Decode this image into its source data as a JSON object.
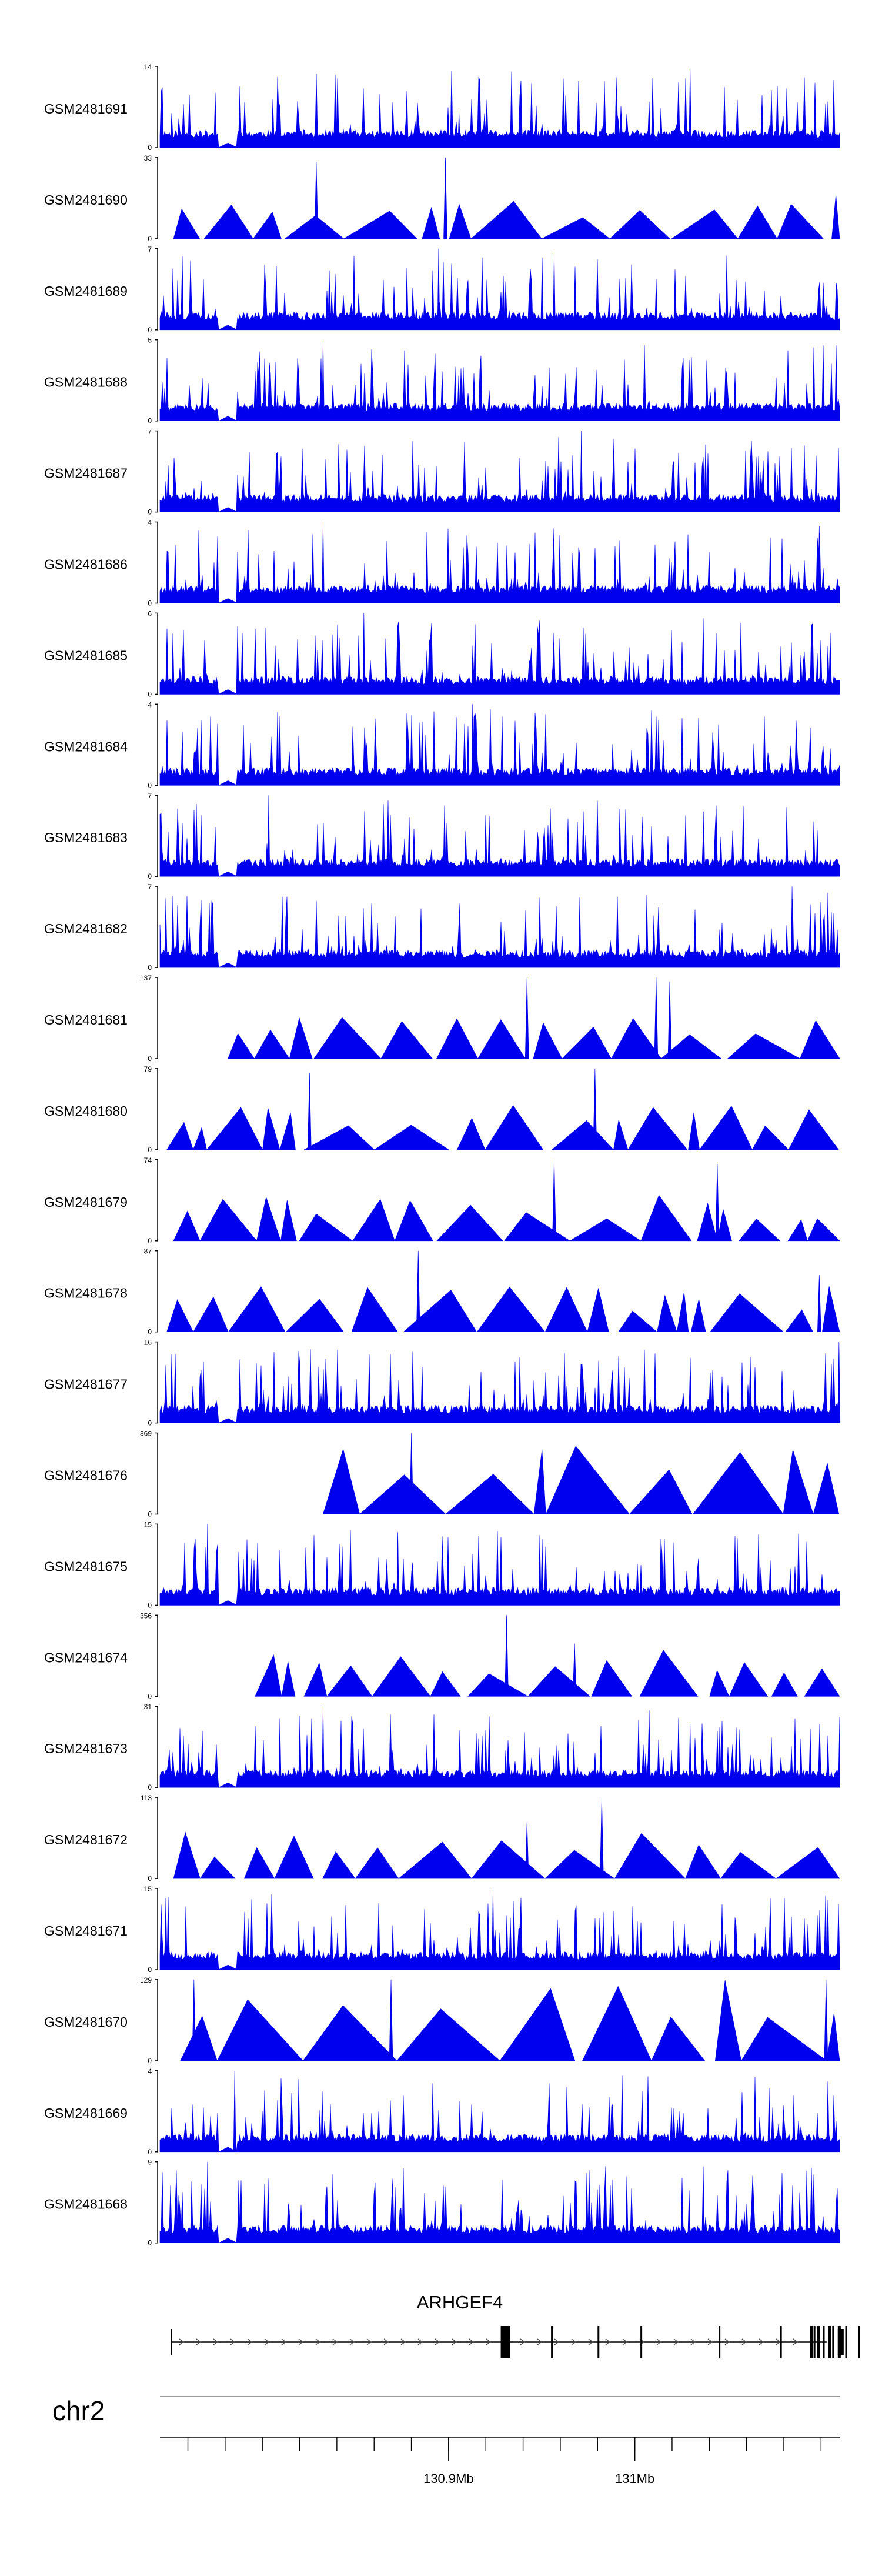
{
  "chart_data": {
    "type": "area",
    "title": "",
    "color": "#0000ee",
    "tracks": [
      {
        "name": "GSM2481691",
        "ymax": 14,
        "ymin": 0,
        "pattern": "noisy",
        "coverage": 0.97,
        "seed": 11,
        "peaks": [
          [
            0.78,
            1.0
          ],
          [
            0.44,
            0.45
          ]
        ]
      },
      {
        "name": "GSM2481690",
        "ymax": 33,
        "ymin": 0,
        "pattern": "triangle",
        "coverage": 0.98,
        "seed": 12,
        "peaks": [
          [
            0.42,
            1.0
          ],
          [
            0.23,
            0.95
          ]
        ]
      },
      {
        "name": "GSM2481689",
        "ymax": 7,
        "ymin": 0,
        "pattern": "noisy",
        "coverage": 0.98,
        "seed": 13,
        "peaks": [
          [
            0.41,
            1.0
          ],
          [
            0.58,
            0.95
          ]
        ]
      },
      {
        "name": "GSM2481688",
        "ymax": 5,
        "ymin": 0,
        "pattern": "noisy",
        "coverage": 0.98,
        "seed": 14,
        "peaks": [
          [
            0.24,
            1.0
          ]
        ]
      },
      {
        "name": "GSM2481687",
        "ymax": 7,
        "ymin": 0,
        "pattern": "noisy",
        "coverage": 0.98,
        "seed": 15,
        "peaks": [
          [
            0.62,
            1.0
          ]
        ]
      },
      {
        "name": "GSM2481686",
        "ymax": 4,
        "ymin": 0,
        "pattern": "noisy",
        "coverage": 0.98,
        "seed": 16,
        "peaks": [
          [
            0.24,
            1.0
          ],
          [
            0.97,
            0.95
          ]
        ]
      },
      {
        "name": "GSM2481685",
        "ymax": 6,
        "ymin": 0,
        "pattern": "noisy",
        "coverage": 0.98,
        "seed": 17,
        "peaks": [
          [
            0.3,
            1.0
          ]
        ]
      },
      {
        "name": "GSM2481684",
        "ymax": 4,
        "ymin": 0,
        "pattern": "noisy",
        "coverage": 0.98,
        "seed": 18,
        "peaks": [
          [
            0.46,
            1.0
          ]
        ]
      },
      {
        "name": "GSM2481683",
        "ymax": 7,
        "ymin": 0,
        "pattern": "noisy",
        "coverage": 0.98,
        "seed": 19,
        "peaks": [
          [
            0.16,
            1.0
          ],
          [
            0.8,
            0.8
          ]
        ]
      },
      {
        "name": "GSM2481682",
        "ymax": 7,
        "ymin": 0,
        "pattern": "noisy",
        "coverage": 0.98,
        "seed": 20,
        "peaks": [
          [
            0.93,
            1.0
          ]
        ]
      },
      {
        "name": "GSM2481681",
        "ymax": 137,
        "ymin": 0,
        "pattern": "triangle",
        "coverage": 0.9,
        "seed": 21,
        "peaks": [
          [
            0.54,
            1.0
          ],
          [
            0.73,
            1.0
          ],
          [
            0.75,
            0.95
          ]
        ]
      },
      {
        "name": "GSM2481680",
        "ymax": 79,
        "ymin": 0,
        "pattern": "triangle",
        "coverage": 0.99,
        "seed": 22,
        "peaks": [
          [
            0.64,
            1.0
          ],
          [
            0.22,
            0.95
          ]
        ]
      },
      {
        "name": "GSM2481679",
        "ymax": 74,
        "ymin": 0,
        "pattern": "triangle",
        "coverage": 0.98,
        "seed": 23,
        "peaks": [
          [
            0.58,
            1.0
          ],
          [
            0.82,
            0.95
          ]
        ]
      },
      {
        "name": "GSM2481678",
        "ymax": 87,
        "ymin": 0,
        "pattern": "triangle",
        "coverage": 0.99,
        "seed": 24,
        "peaks": [
          [
            0.38,
            1.0
          ],
          [
            0.97,
            0.7
          ]
        ]
      },
      {
        "name": "GSM2481677",
        "ymax": 16,
        "ymin": 0,
        "pattern": "noisy",
        "coverage": 0.99,
        "seed": 25,
        "peaks": [
          [
            0.999,
            1.0
          ],
          [
            0.81,
            0.55
          ]
        ]
      },
      {
        "name": "GSM2481676",
        "ymax": 869,
        "ymin": 0,
        "pattern": "big",
        "coverage": 0.76,
        "seed": 26,
        "peaks": [
          [
            0.37,
            1.0
          ],
          [
            0.82,
            0.35
          ]
        ]
      },
      {
        "name": "GSM2481675",
        "ymax": 15,
        "ymin": 0,
        "pattern": "noisy",
        "coverage": 0.99,
        "seed": 27,
        "peaks": [
          [
            0.07,
            1.0
          ],
          [
            0.35,
            0.9
          ]
        ]
      },
      {
        "name": "GSM2481674",
        "ymax": 356,
        "ymin": 0,
        "pattern": "triangle",
        "coverage": 0.86,
        "seed": 28,
        "peaks": [
          [
            0.51,
            1.0
          ],
          [
            0.61,
            0.65
          ]
        ]
      },
      {
        "name": "GSM2481673",
        "ymax": 31,
        "ymin": 0,
        "pattern": "noisy",
        "coverage": 0.98,
        "seed": 29,
        "peaks": [
          [
            0.24,
            1.0
          ],
          [
            0.78,
            0.8
          ]
        ]
      },
      {
        "name": "GSM2481672",
        "ymax": 113,
        "ymin": 0,
        "pattern": "triangle",
        "coverage": 0.98,
        "seed": 30,
        "peaks": [
          [
            0.65,
            1.0
          ],
          [
            0.54,
            0.7
          ]
        ]
      },
      {
        "name": "GSM2481671",
        "ymax": 15,
        "ymin": 0,
        "pattern": "noisy",
        "coverage": 0.99,
        "seed": 31,
        "peaks": [
          [
            0.49,
            1.0
          ]
        ]
      },
      {
        "name": "GSM2481670",
        "ymax": 129,
        "ymin": 0,
        "pattern": "big",
        "coverage": 0.97,
        "seed": 32,
        "peaks": [
          [
            0.05,
            1.0
          ],
          [
            0.34,
            1.0
          ],
          [
            0.98,
            1.0
          ]
        ]
      },
      {
        "name": "GSM2481669",
        "ymax": 4,
        "ymin": 0,
        "pattern": "noisy",
        "coverage": 0.99,
        "seed": 33,
        "peaks": [
          [
            0.11,
            1.0
          ]
        ]
      },
      {
        "name": "GSM2481668",
        "ymax": 9,
        "ymin": 0,
        "pattern": "noisy",
        "coverage": 0.99,
        "seed": 34,
        "peaks": [
          [
            0.07,
            1.0
          ]
        ]
      }
    ],
    "gene": {
      "name": "ARHGEF4",
      "strand": "+",
      "start_mb": 130.751,
      "end_mb": 131.103,
      "exons_mb": [
        130.928,
        130.93,
        130.955,
        130.98,
        131.003,
        131.12,
        131.045,
        131.078,
        131.094,
        131.096,
        131.098,
        131.101,
        131.104,
        131.106,
        131.109,
        131.113
      ]
    },
    "axis": {
      "chromosome": "chr2",
      "range_mb": [
        130.745,
        131.11
      ],
      "major_ticks": [
        {
          "value": 130.9,
          "label": "130.9Mb"
        },
        {
          "value": 131.0,
          "label": "131Mb"
        }
      ],
      "minor_tick_step_mb": 0.02
    }
  }
}
